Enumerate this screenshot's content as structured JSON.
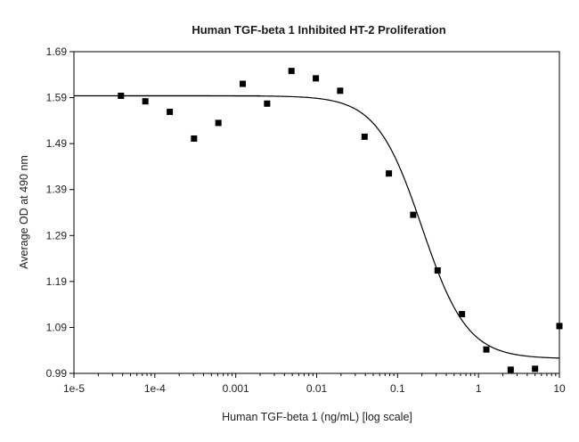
{
  "chart_data": {
    "type": "scatter",
    "title": "Human TGF-beta 1 Inhibited HT-2 Proliferation",
    "xlabel": "Human TGF-beta 1 (ng/mL) [log scale]",
    "ylabel": "Average OD at 490 nm",
    "x_scale": "log",
    "xlim": [
      1e-05,
      10
    ],
    "ylim": [
      0.99,
      1.69
    ],
    "x_ticks": [
      1e-05,
      0.0001,
      0.001,
      0.01,
      0.1,
      1,
      10
    ],
    "x_tick_labels": [
      "1e-5",
      "1e-4",
      "0.001",
      "0.01",
      "0.1",
      "1",
      "10"
    ],
    "y_ticks": [
      0.99,
      1.09,
      1.19,
      1.29,
      1.39,
      1.49,
      1.59,
      1.69
    ],
    "y_tick_labels": [
      "0.99",
      "1.09",
      "1.19",
      "1.29",
      "1.39",
      "1.49",
      "1.59",
      "1.69"
    ],
    "grid": false,
    "marker_color": "#000000",
    "line_color": "#000000",
    "series": [
      {
        "mode": "markers",
        "points": [
          [
            3.81e-05,
            1.594
          ],
          [
            7.63e-05,
            1.582
          ],
          [
            0.000153,
            1.559
          ],
          [
            0.000305,
            1.501
          ],
          [
            0.00061,
            1.535
          ],
          [
            0.00122,
            1.62
          ],
          [
            0.00244,
            1.577
          ],
          [
            0.00488,
            1.648
          ],
          [
            0.00977,
            1.632
          ],
          [
            0.0195,
            1.605
          ],
          [
            0.0391,
            1.505
          ],
          [
            0.0781,
            1.425
          ],
          [
            0.156,
            1.335
          ],
          [
            0.3125,
            1.214
          ],
          [
            0.625,
            1.119
          ],
          [
            1.25,
            1.042
          ],
          [
            2.5,
            0.998
          ],
          [
            5,
            1.0
          ],
          [
            10,
            1.093
          ]
        ]
      },
      {
        "mode": "line",
        "fit": "4PL",
        "top": 1.594,
        "bottom": 1.022,
        "ec50": 0.2,
        "hill": 1.55
      }
    ]
  }
}
